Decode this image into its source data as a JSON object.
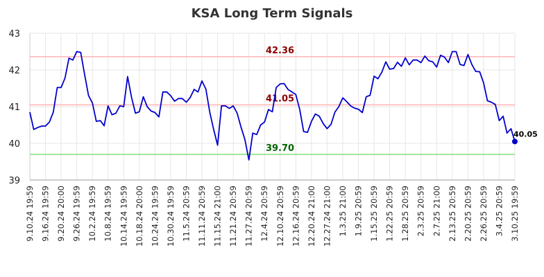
{
  "chart_data": {
    "type": "line",
    "title": "KSA Long Term Signals",
    "xlabel": "",
    "ylabel": "",
    "ylim": [
      39,
      43
    ],
    "yticks": [
      "39",
      "40",
      "41",
      "42",
      "43"
    ],
    "grid": true,
    "x_tick_labels": [
      "9.10.24 19:59",
      "9.16.24 19:59",
      "9.20.24 20:00",
      "9.26.24 19:59",
      "10.2.24 19:59",
      "10.8.24 19:59",
      "10.14.24 19:59",
      "10.18.24 20:00",
      "10.24.24 19:59",
      "10.30.24 19:59",
      "11.5.24 20:59",
      "11.11.24 20:59",
      "11.15.24 21:00",
      "11.21.24 20:59",
      "11.27.24 20:59",
      "12.4.24 20:59",
      "12.10.24 20:59",
      "12.16.24 20:59",
      "12.20.24 21:00",
      "12.27.24 21:00",
      "1.3.25 21:00",
      "1.9.25 20:59",
      "1.15.25 20:59",
      "1.22.25 20:59",
      "1.28.25 20:59",
      "2.3.25 20:59",
      "2.7.25 21:00",
      "2.13.25 20:59",
      "2.20.25 20:59",
      "2.26.25 20:59",
      "3.4.25 20:59",
      "3.10.25 19:59"
    ],
    "series": [
      {
        "color": "#0000cc",
        "values": [
          40.85,
          40.38,
          40.43,
          40.47,
          40.47,
          40.58,
          40.85,
          41.52,
          41.52,
          41.78,
          42.32,
          42.27,
          42.5,
          42.48,
          41.88,
          41.3,
          41.1,
          40.6,
          40.62,
          40.48,
          41.02,
          40.78,
          40.82,
          41.02,
          41.0,
          41.82,
          41.25,
          40.82,
          40.86,
          41.27,
          41.0,
          40.88,
          40.84,
          40.72,
          41.4,
          41.4,
          41.3,
          41.15,
          41.22,
          41.22,
          41.12,
          41.25,
          41.47,
          41.4,
          41.7,
          41.48,
          40.85,
          40.38,
          39.95,
          41.02,
          41.02,
          40.95,
          41.02,
          40.82,
          40.44,
          40.1,
          39.55,
          40.28,
          40.24,
          40.5,
          40.58,
          40.92,
          40.86,
          41.52,
          41.62,
          41.63,
          41.47,
          41.4,
          41.33,
          40.92,
          40.32,
          40.3,
          40.6,
          40.8,
          40.74,
          40.54,
          40.4,
          40.52,
          40.85,
          41.0,
          41.24,
          41.14,
          41.02,
          40.96,
          40.93,
          40.84,
          41.27,
          41.31,
          41.83,
          41.76,
          41.94,
          42.22,
          42.02,
          42.04,
          42.21,
          42.1,
          42.33,
          42.14,
          42.27,
          42.27,
          42.2,
          42.38,
          42.25,
          42.22,
          42.08,
          42.4,
          42.35,
          42.2,
          42.5,
          42.5,
          42.15,
          42.12,
          42.42,
          42.15,
          41.96,
          41.95,
          41.65,
          41.16,
          41.12,
          41.06,
          40.62,
          40.74,
          40.28,
          40.4,
          40.05
        ]
      }
    ],
    "reference_lines": [
      {
        "value": 42.36,
        "label": "42.36",
        "line_color": "#ffb3b3",
        "label_color": "#8b0000"
      },
      {
        "value": 41.05,
        "label": "41.05",
        "line_color": "#ffb3b3",
        "label_color": "#8b0000"
      },
      {
        "value": 39.7,
        "label": "39.70",
        "line_color": "#80e080",
        "label_color": "#006400"
      }
    ],
    "last_point_label": "40.05",
    "marker_color": "#0000cc"
  }
}
